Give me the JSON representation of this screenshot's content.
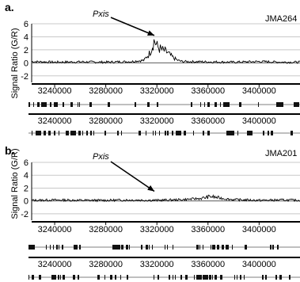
{
  "figure": {
    "panels": [
      {
        "label": "a.",
        "strain": "JMA264",
        "annotation": "Pxis"
      },
      {
        "label": "b.",
        "strain": "JMA201",
        "annotation": "Pxis"
      }
    ],
    "ylabel": "Signal Ratio (G/R)",
    "line_color": "#000000",
    "gene_color": "#111111",
    "grid_color": "#c8c8c8"
  },
  "chart_data": [
    {
      "type": "line",
      "panel": "a.",
      "title": "JMA264",
      "xlabel": "",
      "ylabel": "Signal Ratio (G/R)",
      "x_ticks": [
        3240000,
        3280000,
        3320000,
        3360000,
        3400000
      ],
      "x_tick_labels": [
        "3240000",
        "3280000",
        "3320000",
        "3360000",
        "3400000"
      ],
      "xlim": [
        3222000,
        3432000
      ],
      "y_ticks": [
        -2,
        0,
        2,
        4,
        6
      ],
      "ylim": [
        -3,
        6
      ],
      "grid": true,
      "annotation": {
        "text": "Pxis",
        "arrow_to_x": 3318000,
        "arrow_to_y": 4.2
      },
      "series": [
        {
          "x": [
            3222000,
            3240000,
            3260000,
            3280000,
            3300000,
            3310000,
            3314000,
            3316000,
            3318000,
            3320000,
            3322000,
            3325000,
            3328000,
            3332000,
            3336000,
            3340000,
            3360000,
            3380000,
            3400000,
            3420000,
            3432000
          ],
          "values": [
            0.2,
            0.1,
            0.15,
            0.1,
            0.2,
            0.4,
            1.4,
            2.3,
            3.5,
            2.6,
            2.2,
            1.9,
            1.6,
            0.9,
            0.4,
            0.2,
            0.15,
            0.1,
            0.2,
            0.1,
            0.1
          ]
        }
      ]
    },
    {
      "type": "line",
      "panel": "b.",
      "title": "JMA201",
      "xlabel": "",
      "ylabel": "Signal Ratio (G/R)",
      "x_ticks": [
        3240000,
        3280000,
        3320000,
        3360000,
        3400000
      ],
      "x_tick_labels": [
        "3240000",
        "3280000",
        "3320000",
        "3360000",
        "3400000"
      ],
      "xlim": [
        3222000,
        3432000
      ],
      "y_ticks": [
        -2,
        0,
        2,
        4,
        6
      ],
      "ylim": [
        -3,
        6
      ],
      "grid": true,
      "annotation": {
        "text": "Pxis",
        "arrow_to_x": 3318000,
        "arrow_to_y": 1.5
      },
      "series": [
        {
          "x": [
            3222000,
            3240000,
            3260000,
            3280000,
            3300000,
            3320000,
            3340000,
            3355000,
            3362000,
            3368000,
            3375000,
            3380000,
            3400000,
            3420000,
            3432000
          ],
          "values": [
            0.1,
            0.15,
            0.1,
            0.1,
            0.15,
            0.1,
            0.2,
            0.4,
            0.7,
            0.5,
            0.3,
            0.2,
            0.1,
            0.15,
            0.1
          ]
        }
      ]
    }
  ]
}
